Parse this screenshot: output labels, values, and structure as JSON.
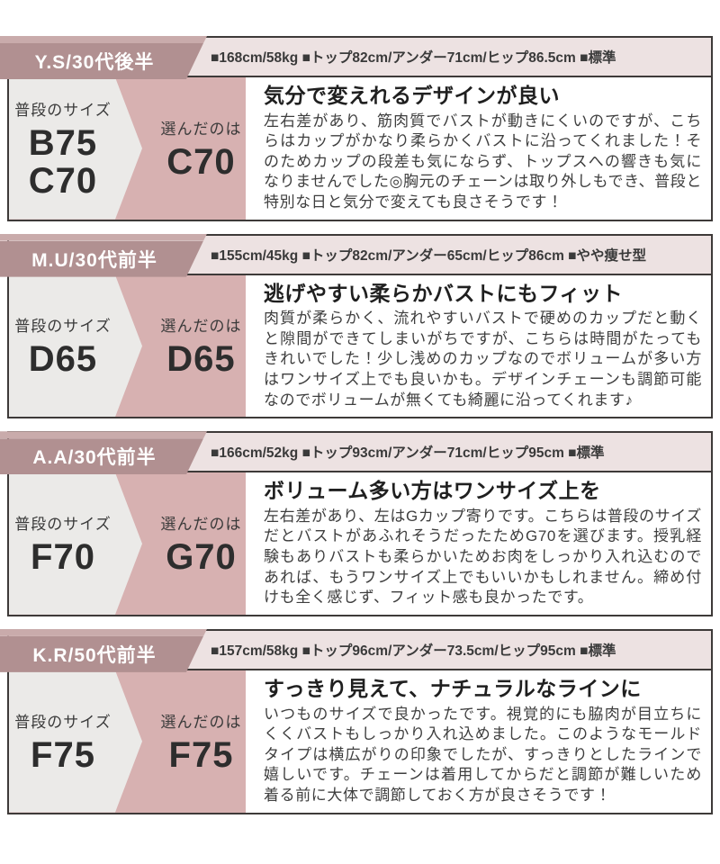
{
  "labels": {
    "usual": "普段のサイズ",
    "chosen": "選んだのは"
  },
  "colors": {
    "tag_mauve": "#b19091",
    "tag_strip": "#c9abab",
    "header_bg": "#ede2e2",
    "usual_bg": "#ebeae8",
    "chosen_bg": "#d7b1b1",
    "border": "#3e3a39"
  },
  "sections": [
    {
      "name": "Y.S/30代後半",
      "specs": "■168cm/58kg ■トップ82cm/アンダー71cm/ヒップ86.5cm ■標準",
      "usual_size_1": "B75",
      "usual_size_2": "C70",
      "chosen_size": "C70",
      "title": "気分で変えれるデザインが良い",
      "review": "左右差があり、筋肉質でバストが動きにくいのですが、こちらはカップがかなり柔らかくバストに沿ってくれました！そのためカップの段差も気にならず、トップスへの響きも気になりませんでした◎胸元のチェーンは取り外しもでき、普段と特別な日と気分で変えても良さそうです！"
    },
    {
      "name": "M.U/30代前半",
      "specs": "■155cm/45kg ■トップ82cm/アンダー65cm/ヒップ86cm ■やや痩せ型",
      "usual_size_1": "D65",
      "chosen_size": "D65",
      "title": "逃げやすい柔らかバストにもフィット",
      "review": "肉質が柔らかく、流れやすいバストで硬めのカップだと動くと隙間ができてしまいがちですが、こちらは時間がたってもきれいでした！少し浅めのカップなのでボリュームが多い方はワンサイズ上でも良いかも。デザインチェーンも調節可能なのでボリュームが無くても綺麗に沿ってくれます♪"
    },
    {
      "name": "A.A/30代前半",
      "specs": "■166cm/52kg ■トップ93cm/アンダー71cm/ヒップ95cm ■標準",
      "usual_size_1": "F70",
      "chosen_size": "G70",
      "title": "ボリューム多い方はワンサイズ上を",
      "review": "左右差があり、左はGカップ寄りです。こちらは普段のサイズだとバストがあふれそうだったためG70を選びます。授乳経験もありバストも柔らかいためお肉をしっかり入れ込むのであれば、もうワンサイズ上でもいいかもしれません。締め付けも全く感じず、フィット感も良かったです。"
    },
    {
      "name": "K.R/50代前半",
      "specs": "■157cm/58kg ■トップ96cm/アンダー73.5cm/ヒップ95cm ■標準",
      "usual_size_1": "F75",
      "chosen_size": "F75",
      "title": "すっきり見えて、ナチュラルなラインに",
      "review": "いつものサイズで良かったです。視覚的にも脇肉が目立ちにくくバストもしっかり入れ込めました。このようなモールドタイプは横広がりの印象でしたが、すっきりとしたラインで嬉しいです。チェーンは着用してからだと調節が難しいため着る前に大体で調節しておく方が良さそうです！"
    }
  ]
}
